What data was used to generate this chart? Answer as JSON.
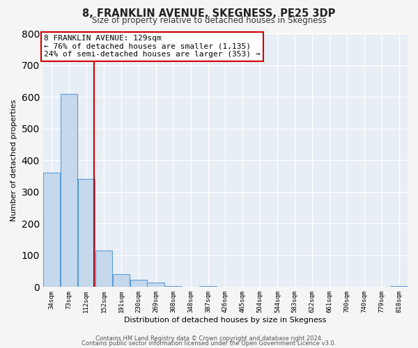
{
  "title": "8, FRANKLIN AVENUE, SKEGNESS, PE25 3DP",
  "subtitle": "Size of property relative to detached houses in Skegness",
  "xlabel": "Distribution of detached houses by size in Skegness",
  "ylabel": "Number of detached properties",
  "bin_labels": [
    "34sqm",
    "73sqm",
    "112sqm",
    "152sqm",
    "191sqm",
    "230sqm",
    "269sqm",
    "308sqm",
    "348sqm",
    "387sqm",
    "426sqm",
    "465sqm",
    "504sqm",
    "544sqm",
    "583sqm",
    "622sqm",
    "661sqm",
    "700sqm",
    "740sqm",
    "779sqm",
    "818sqm"
  ],
  "bar_values": [
    360,
    610,
    340,
    115,
    40,
    22,
    14,
    2,
    0,
    2,
    0,
    0,
    0,
    0,
    0,
    0,
    0,
    0,
    0,
    0,
    2
  ],
  "bar_color": "#c5d8ec",
  "bar_edge_color": "#5b9bd5",
  "red_line_x": 129,
  "annotation_line1": "8 FRANKLIN AVENUE: 129sqm",
  "annotation_line2": "← 76% of detached houses are smaller (1,135)",
  "annotation_line3": "24% of semi-detached houses are larger (353) →",
  "annotation_box_color": "#ffffff",
  "annotation_border_color": "#cc0000",
  "ylim": [
    0,
    800
  ],
  "yticks": [
    0,
    100,
    200,
    300,
    400,
    500,
    600,
    700,
    800
  ],
  "background_color": "#e8eef5",
  "grid_color": "#ffffff",
  "fig_background": "#f5f5f5",
  "footer_line1": "Contains HM Land Registry data © Crown copyright and database right 2024.",
  "footer_line2": "Contains public sector information licensed under the Open Government Licence v3.0."
}
